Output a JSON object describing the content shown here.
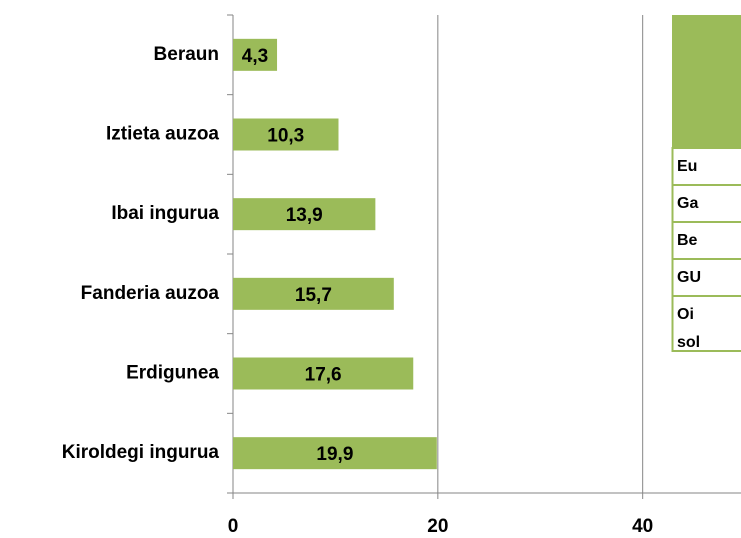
{
  "chart_data": {
    "type": "bar",
    "orientation": "horizontal",
    "categories": [
      "Beraun",
      "Iztieta auzoa",
      "Ibai ingurua",
      "Fanderia auzoa",
      "Erdigunea",
      "Kiroldegi ingurua"
    ],
    "values": [
      4.3,
      10.3,
      13.9,
      15.7,
      17.6,
      19.9
    ],
    "value_labels": [
      "4,3",
      "10,3",
      "13,9",
      "15,7",
      "17,6",
      "19,9"
    ],
    "color": "#9bbb59",
    "xlim": [
      0,
      49.6
    ],
    "xticks": [
      0,
      20,
      40
    ],
    "grid": true
  },
  "table": {
    "rows": [
      [
        "Eu"
      ],
      [
        "Ga"
      ],
      [
        "Be"
      ],
      [
        "GU"
      ],
      [
        "Oi",
        "sol"
      ]
    ]
  }
}
